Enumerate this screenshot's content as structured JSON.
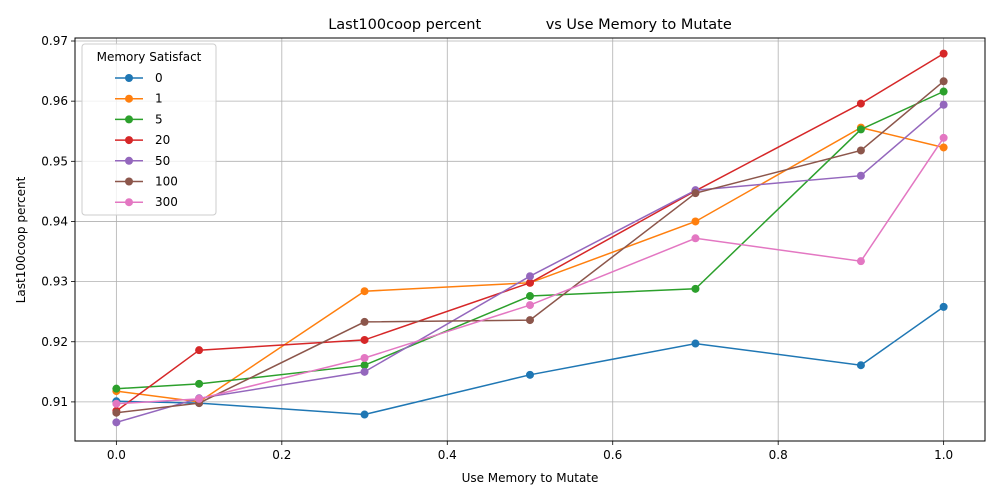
{
  "chart_data": {
    "type": "line",
    "title": "Last100coop percent              vs Use Memory to Mutate",
    "xlabel": "Use Memory to Mutate",
    "ylabel": "Last100coop percent",
    "x": [
      0.0,
      0.1,
      0.3,
      0.5,
      0.7,
      0.9,
      1.0
    ],
    "xlim": [
      -0.05,
      1.05
    ],
    "ylim": [
      0.9035,
      0.9705
    ],
    "xticks": [
      "0.0",
      "0.2",
      "0.4",
      "0.6",
      "0.8",
      "1.0"
    ],
    "xtick_values": [
      0.0,
      0.2,
      0.4,
      0.6,
      0.8,
      1.0
    ],
    "yticks": [
      "0.91",
      "0.92",
      "0.93",
      "0.94",
      "0.95",
      "0.96",
      "0.97"
    ],
    "ytick_values": [
      0.91,
      0.92,
      0.93,
      0.94,
      0.95,
      0.96,
      0.97
    ],
    "grid": true,
    "legend_title": "Memory Satisfact",
    "legend_position": "upper-left",
    "series": [
      {
        "name": "0",
        "color": "#1f77b4",
        "values": [
          0.9101,
          0.9098,
          0.9079,
          0.9145,
          0.9197,
          0.9161,
          0.9258
        ]
      },
      {
        "name": "1",
        "color": "#ff7f0e",
        "values": [
          0.9118,
          0.91,
          0.9284,
          0.9298,
          0.94,
          0.9556,
          0.9523
        ]
      },
      {
        "name": "5",
        "color": "#2ca02c",
        "values": [
          0.9122,
          0.913,
          0.9161,
          0.9276,
          0.9288,
          0.9553,
          0.9616
        ]
      },
      {
        "name": "20",
        "color": "#d62728",
        "values": [
          0.9085,
          0.9186,
          0.9203,
          0.9298,
          0.9451,
          0.9596,
          0.9679
        ]
      },
      {
        "name": "50",
        "color": "#9467bd",
        "values": [
          0.9066,
          0.9106,
          0.915,
          0.9309,
          0.9452,
          0.9476,
          0.9594
        ]
      },
      {
        "name": "100",
        "color": "#8c564b",
        "values": [
          0.9082,
          0.9098,
          0.9233,
          0.9236,
          0.9447,
          0.9518,
          0.9633
        ]
      },
      {
        "name": "300",
        "color": "#e377c2",
        "values": [
          0.9097,
          0.9105,
          0.9173,
          0.9261,
          0.9372,
          0.9334,
          0.9539
        ]
      }
    ]
  }
}
